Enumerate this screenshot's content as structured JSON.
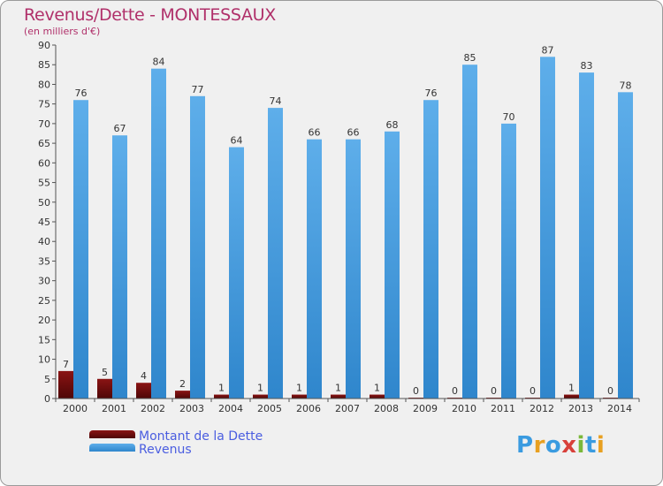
{
  "header": {
    "title": "Revenus/Dette - MONTESSAUX",
    "subtitle": "(en milliers d'€)"
  },
  "legend": {
    "items": [
      {
        "label": "Montant de la Dette"
      },
      {
        "label": "Revenus"
      }
    ]
  },
  "logo": {
    "text": "Proxiti"
  },
  "colors": {
    "debt": "#6e0a0a",
    "revenue": "#4a9fe0",
    "title": "#b0306a",
    "legend_text": "#4a5de0"
  },
  "chart_data": {
    "type": "bar",
    "title": "Revenus/Dette - MONTESSAUX",
    "subtitle": "(en milliers d'€)",
    "categories": [
      "2000",
      "2001",
      "2002",
      "2003",
      "2004",
      "2005",
      "2006",
      "2007",
      "2008",
      "2009",
      "2010",
      "2011",
      "2012",
      "2013",
      "2014"
    ],
    "series": [
      {
        "name": "Montant de la Dette",
        "values": [
          7,
          5,
          4,
          2,
          1,
          1,
          1,
          1,
          1,
          0,
          0,
          0,
          0,
          1,
          0
        ]
      },
      {
        "name": "Revenus",
        "values": [
          76,
          67,
          84,
          77,
          64,
          74,
          66,
          66,
          68,
          76,
          85,
          70,
          87,
          83,
          78
        ]
      }
    ],
    "ylim": [
      0,
      90
    ],
    "yticks": [
      0,
      5,
      10,
      15,
      20,
      25,
      30,
      35,
      40,
      45,
      50,
      55,
      60,
      65,
      70,
      75,
      80,
      85,
      90
    ],
    "grid": false,
    "legend_position": "bottom-left"
  }
}
